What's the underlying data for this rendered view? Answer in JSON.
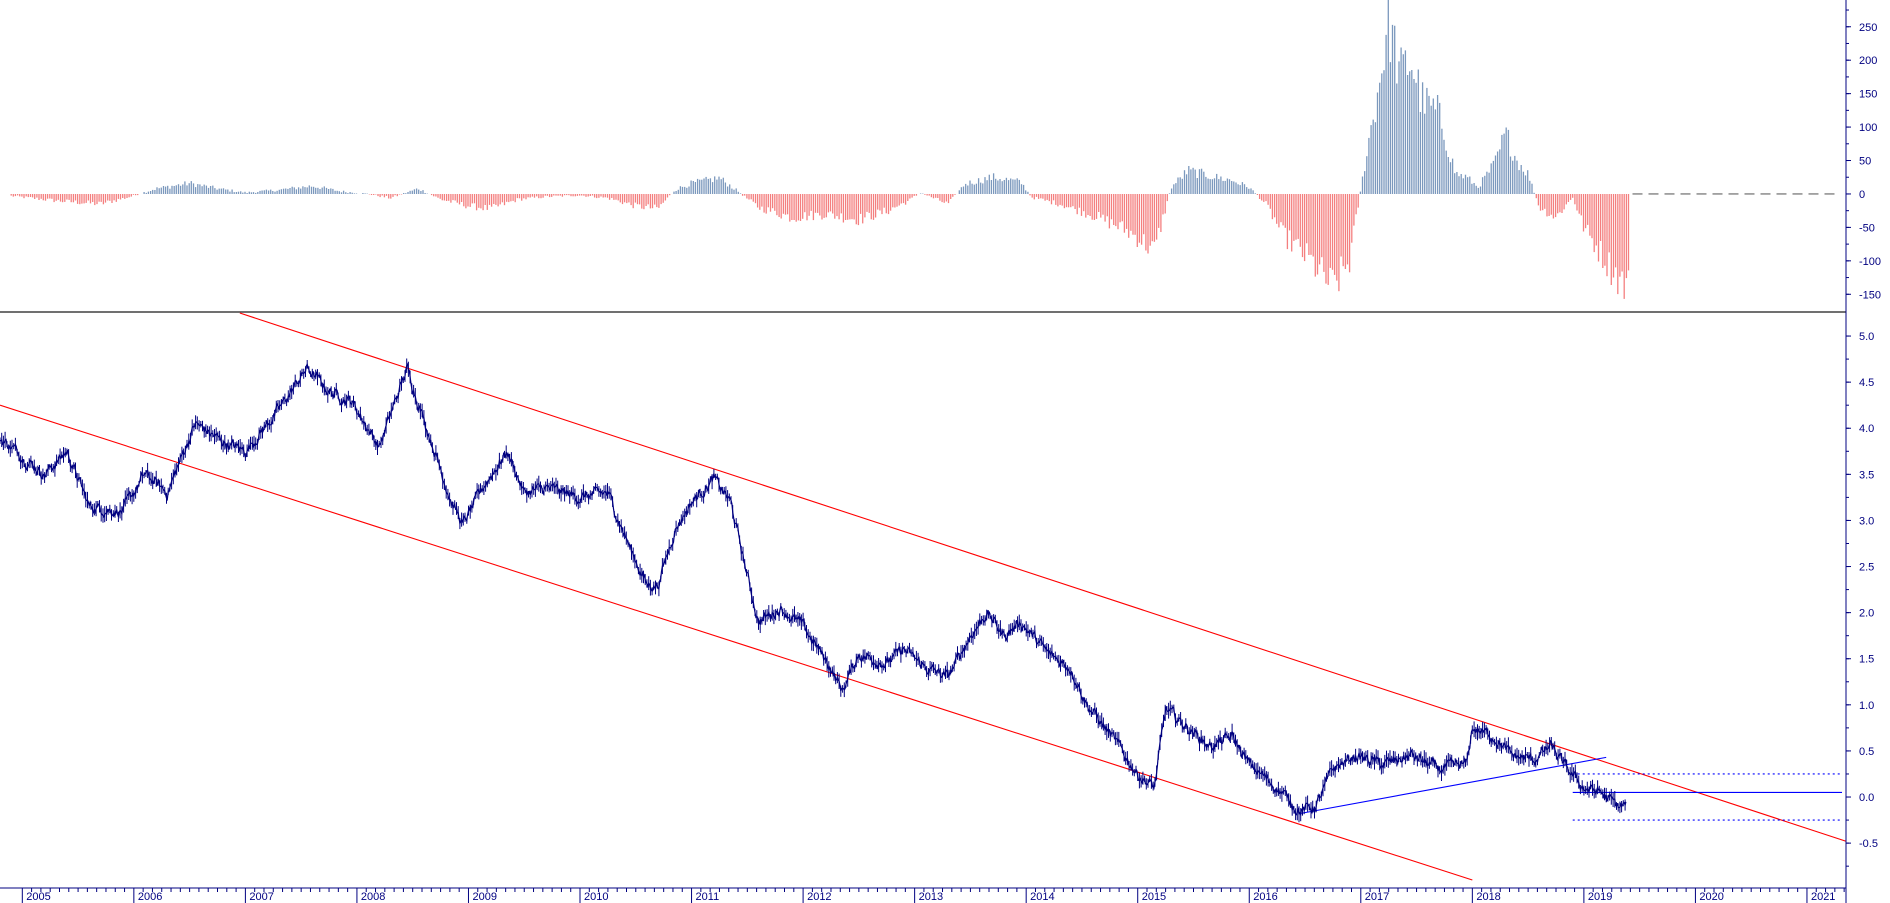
{
  "chart_data": [
    {
      "type": "bar",
      "panel": "upper-oscillator",
      "colors": {
        "positive": "#7b98bd",
        "negative": "#f47f7f",
        "zero_line": "#808080",
        "axis": "#000080"
      },
      "y_range": [
        -175,
        290
      ],
      "y_ticks": [
        "250",
        "200",
        "150",
        "100",
        "50",
        "0",
        "-50",
        "-100",
        "-150"
      ],
      "anchors": [
        [
          2004.9,
          -3
        ],
        [
          2005.3,
          -10
        ],
        [
          2005.7,
          -15
        ],
        [
          2005.95,
          -5
        ],
        [
          2006.2,
          8
        ],
        [
          2006.5,
          16
        ],
        [
          2006.75,
          8
        ],
        [
          2007.0,
          2
        ],
        [
          2007.3,
          6
        ],
        [
          2007.6,
          12
        ],
        [
          2007.85,
          4
        ],
        [
          2008.1,
          0
        ],
        [
          2008.3,
          -6
        ],
        [
          2008.55,
          8
        ],
        [
          2008.75,
          -8
        ],
        [
          2009.0,
          -18
        ],
        [
          2009.2,
          -22
        ],
        [
          2009.45,
          -8
        ],
        [
          2009.7,
          -4
        ],
        [
          2010.0,
          -2
        ],
        [
          2010.25,
          -6
        ],
        [
          2010.5,
          -18
        ],
        [
          2010.7,
          -22
        ],
        [
          2010.85,
          6
        ],
        [
          2011.0,
          16
        ],
        [
          2011.25,
          24
        ],
        [
          2011.4,
          6
        ],
        [
          2011.6,
          -20
        ],
        [
          2011.9,
          -35
        ],
        [
          2012.2,
          -30
        ],
        [
          2012.5,
          -38
        ],
        [
          2012.75,
          -26
        ],
        [
          2012.95,
          -10
        ],
        [
          2013.05,
          2
        ],
        [
          2013.3,
          -15
        ],
        [
          2013.45,
          15
        ],
        [
          2013.7,
          25
        ],
        [
          2013.95,
          18
        ],
        [
          2014.05,
          -5
        ],
        [
          2014.3,
          -15
        ],
        [
          2014.6,
          -32
        ],
        [
          2014.85,
          -50
        ],
        [
          2015.0,
          -65
        ],
        [
          2015.15,
          -85
        ],
        [
          2015.3,
          10
        ],
        [
          2015.45,
          35
        ],
        [
          2015.7,
          25
        ],
        [
          2015.85,
          20
        ],
        [
          2016.0,
          10
        ],
        [
          2016.15,
          -15
        ],
        [
          2016.3,
          -60
        ],
        [
          2016.55,
          -100
        ],
        [
          2016.75,
          -140
        ],
        [
          2016.9,
          -100
        ],
        [
          2017.05,
          60
        ],
        [
          2017.15,
          150
        ],
        [
          2017.25,
          260
        ],
        [
          2017.35,
          180
        ],
        [
          2017.45,
          200
        ],
        [
          2017.55,
          140
        ],
        [
          2017.7,
          120
        ],
        [
          2017.85,
          30
        ],
        [
          2017.95,
          25
        ],
        [
          2018.05,
          10
        ],
        [
          2018.2,
          45
        ],
        [
          2018.3,
          90
        ],
        [
          2018.4,
          50
        ],
        [
          2018.5,
          30
        ],
        [
          2018.6,
          -20
        ],
        [
          2018.75,
          -35
        ],
        [
          2018.9,
          -5
        ],
        [
          2019.0,
          -50
        ],
        [
          2019.2,
          -100
        ],
        [
          2019.35,
          -135
        ],
        [
          2019.4,
          -140
        ]
      ]
    },
    {
      "type": "line",
      "panel": "lower-price",
      "colors": {
        "series": "#000080",
        "channel": "#ff0000",
        "support": "#0000ff",
        "axis": "#000080"
      },
      "y_range": [
        -0.9,
        5.25
      ],
      "y_ticks": [
        "5.0",
        "4.5",
        "4.0",
        "3.5",
        "3.0",
        "2.5",
        "2.0",
        "1.5",
        "1.0",
        "0.5",
        "0.0",
        "-0.5"
      ],
      "x_range": [
        2004.8,
        2021.35
      ],
      "x_year_labels": [
        "2005",
        "2006",
        "2007",
        "2008",
        "2009",
        "2010",
        "2011",
        "2012",
        "2013",
        "2014",
        "2015",
        "2016",
        "2017",
        "2018",
        "2019",
        "2020",
        "2021"
      ],
      "anchors": [
        [
          2004.8,
          3.9
        ],
        [
          2005.0,
          3.7
        ],
        [
          2005.2,
          3.5
        ],
        [
          2005.4,
          3.75
        ],
        [
          2005.6,
          3.15
        ],
        [
          2005.9,
          3.1
        ],
        [
          2006.1,
          3.5
        ],
        [
          2006.3,
          3.3
        ],
        [
          2006.55,
          4.05
        ],
        [
          2006.8,
          3.85
        ],
        [
          2007.0,
          3.75
        ],
        [
          2007.3,
          4.2
        ],
        [
          2007.55,
          4.65
        ],
        [
          2007.75,
          4.4
        ],
        [
          2007.95,
          4.3
        ],
        [
          2008.2,
          3.8
        ],
        [
          2008.45,
          4.65
        ],
        [
          2008.6,
          4.1
        ],
        [
          2008.85,
          3.2
        ],
        [
          2008.95,
          2.95
        ],
        [
          2009.15,
          3.4
        ],
        [
          2009.35,
          3.75
        ],
        [
          2009.5,
          3.3
        ],
        [
          2009.7,
          3.35
        ],
        [
          2010.0,
          3.25
        ],
        [
          2010.25,
          3.3
        ],
        [
          2010.45,
          2.7
        ],
        [
          2010.6,
          2.3
        ],
        [
          2010.7,
          2.3
        ],
        [
          2010.85,
          2.9
        ],
        [
          2011.0,
          3.2
        ],
        [
          2011.2,
          3.45
        ],
        [
          2011.35,
          3.2
        ],
        [
          2011.5,
          2.4
        ],
        [
          2011.6,
          1.9
        ],
        [
          2011.8,
          2.05
        ],
        [
          2012.0,
          1.85
        ],
        [
          2012.25,
          1.4
        ],
        [
          2012.35,
          1.15
        ],
        [
          2012.5,
          1.55
        ],
        [
          2012.75,
          1.45
        ],
        [
          2012.9,
          1.6
        ],
        [
          2013.1,
          1.4
        ],
        [
          2013.3,
          1.3
        ],
        [
          2013.5,
          1.75
        ],
        [
          2013.65,
          2.0
        ],
        [
          2013.8,
          1.75
        ],
        [
          2013.95,
          1.9
        ],
        [
          2014.2,
          1.55
        ],
        [
          2014.4,
          1.4
        ],
        [
          2014.55,
          1.0
        ],
        [
          2014.8,
          0.6
        ],
        [
          2015.0,
          0.25
        ],
        [
          2015.15,
          0.1
        ],
        [
          2015.25,
          0.95
        ],
        [
          2015.45,
          0.75
        ],
        [
          2015.65,
          0.55
        ],
        [
          2015.85,
          0.65
        ],
        [
          2016.0,
          0.35
        ],
        [
          2016.25,
          0.1
        ],
        [
          2016.45,
          -0.15
        ],
        [
          2016.6,
          -0.1
        ],
        [
          2016.75,
          0.3
        ],
        [
          2016.95,
          0.45
        ],
        [
          2017.2,
          0.35
        ],
        [
          2017.45,
          0.45
        ],
        [
          2017.7,
          0.3
        ],
        [
          2017.95,
          0.35
        ],
        [
          2018.0,
          0.75
        ],
        [
          2018.2,
          0.65
        ],
        [
          2018.35,
          0.45
        ],
        [
          2018.55,
          0.4
        ],
        [
          2018.7,
          0.55
        ],
        [
          2018.85,
          0.3
        ],
        [
          2019.0,
          0.1
        ],
        [
          2019.15,
          0.05
        ],
        [
          2019.3,
          -0.1
        ],
        [
          2019.38,
          -0.1
        ]
      ],
      "trendlines": [
        {
          "kind": "channel-upper",
          "points": [
            [
              2006.95,
              5.25
            ],
            [
              2021.35,
              -0.48
            ]
          ]
        },
        {
          "kind": "channel-lower",
          "points": [
            [
              2004.8,
              4.25
            ],
            [
              2018.0,
              -0.9
            ]
          ]
        },
        {
          "kind": "support",
          "points": [
            [
              2016.45,
              -0.18
            ],
            [
              2019.2,
              0.43
            ]
          ]
        },
        {
          "kind": "horizontal",
          "value": 0.05,
          "x_start": 2018.9
        },
        {
          "kind": "dotted",
          "value": 0.25,
          "x_start": 2018.9
        },
        {
          "kind": "dotted",
          "value": -0.25,
          "x_start": 2018.9
        }
      ]
    }
  ]
}
